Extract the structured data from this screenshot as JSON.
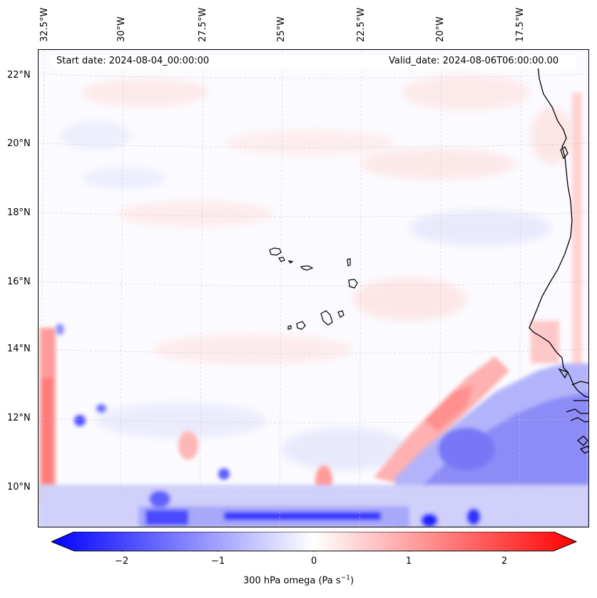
{
  "header": {
    "start_date": "Start date: 2024-08-04_00:00:00",
    "valid_date": "Valid_date: 2024-08-06T06:00:00.00"
  },
  "longitudes": [
    "32.5°W",
    "30°W",
    "27.5°W",
    "25°W",
    "22.5°W",
    "20°W",
    "17.5°W"
  ],
  "latitudes": [
    "22°N",
    "20°N",
    "18°N",
    "16°N",
    "14°N",
    "12°N",
    "10°N"
  ],
  "colorbar": {
    "ticks": [
      "−2",
      "−1",
      "0",
      "1",
      "2"
    ],
    "tick_values": [
      -2,
      -1,
      0,
      1,
      2
    ],
    "range": [
      -2.75,
      2.75
    ],
    "label_main": "300 hPa omega (Pa s",
    "label_sup": "−1",
    "label_end": ")",
    "colors": {
      "low": "#0000ff",
      "mid": "#ffffff",
      "high": "#ff0000"
    }
  }
}
